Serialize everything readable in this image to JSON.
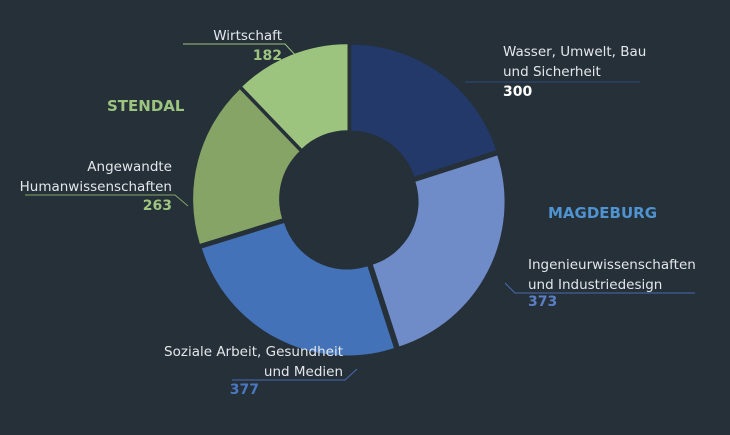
{
  "chart_data": {
    "type": "donut",
    "categories": [
      "Wasser, Umwelt, Bau\nund Sicherheit",
      "Ingenieurwissenschaften\nund Industriedesign",
      "Soziale Arbeit, Gesundheit\nund Medien",
      "Angewandte\nHumanwissenschaften",
      "Wirtschaft"
    ],
    "values": [
      300,
      373,
      377,
      263,
      182
    ],
    "colors": [
      "#22396a",
      "#6f8cc8",
      "#4472b8",
      "#86a465",
      "#9dc47f"
    ],
    "groups": [
      {
        "name": "STENDAL",
        "color": "#9dc47f"
      },
      {
        "name": "MAGDEBURG",
        "color": "#4f93d1"
      }
    ]
  }
}
